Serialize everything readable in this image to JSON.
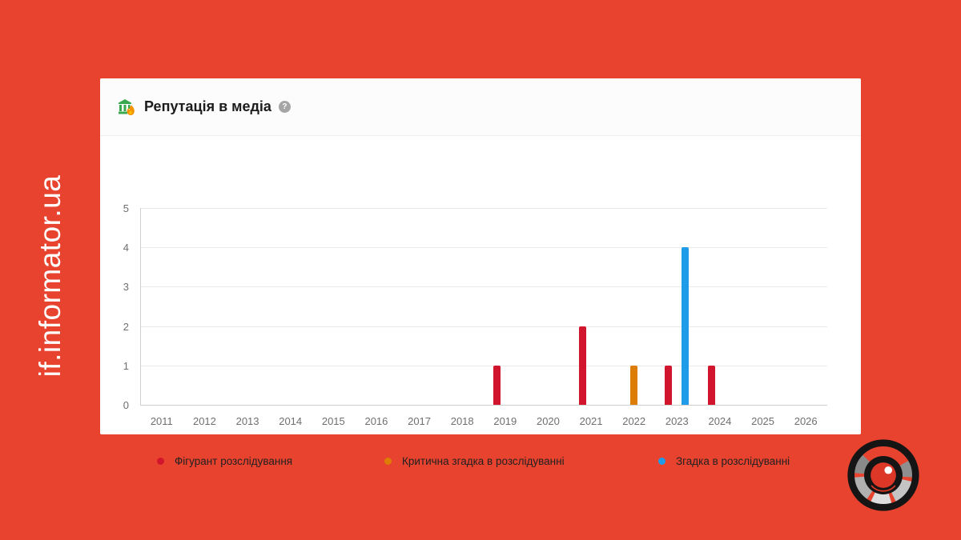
{
  "background_color": "#e8432e",
  "watermark": {
    "text": "if.informator.ua",
    "color": "#ffffff"
  },
  "card": {
    "header": {
      "title": "Репутація в медіа",
      "help_label": "?",
      "icons": {
        "title_icon": "bank-flame-icon",
        "help_icon": "question-circle-icon"
      }
    },
    "chart_data": {
      "type": "bar",
      "title": "Репутація в медіа",
      "categories": [
        "2011",
        "2012",
        "2013",
        "2014",
        "2015",
        "2016",
        "2017",
        "2018",
        "2019",
        "2020",
        "2021",
        "2022",
        "2023",
        "2024",
        "2025",
        "2026"
      ],
      "series": [
        {
          "name": "Фігурант розслідування",
          "color": "#d1152c",
          "values": [
            0,
            0,
            0,
            0,
            0,
            0,
            0,
            0,
            1,
            0,
            2,
            0,
            1,
            1,
            0,
            0
          ]
        },
        {
          "name": "Критична згадка в розслідуванні",
          "color": "#dd7d04",
          "values": [
            0,
            0,
            0,
            0,
            0,
            0,
            0,
            0,
            0,
            0,
            0,
            1,
            0,
            0,
            0,
            0
          ]
        },
        {
          "name": "Згадка в розслідуванні",
          "color": "#1f9ce9",
          "values": [
            0,
            0,
            0,
            0,
            0,
            0,
            0,
            0,
            0,
            0,
            0,
            0,
            4,
            0,
            0,
            0
          ]
        }
      ],
      "xlabel": "",
      "ylabel": "",
      "ylim": [
        0,
        5
      ],
      "yticks": [
        0,
        1,
        2,
        3,
        4,
        5
      ],
      "grid": true,
      "legend_position": "bottom"
    }
  },
  "logo": {
    "name": "eye-aperture-logo"
  }
}
